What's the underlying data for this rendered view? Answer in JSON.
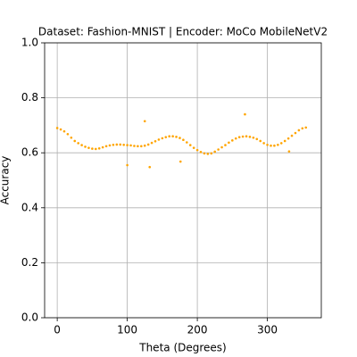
{
  "chart_data": {
    "type": "scatter",
    "title": "Dataset: Fashion-MNIST | Encoder: MoCo MobileNetV2",
    "xlabel": "Theta (Degrees)",
    "ylabel": "Accuracy",
    "color": "#ffa500",
    "grid": true,
    "x": [
      0,
      5,
      10,
      15,
      20,
      25,
      30,
      35,
      40,
      45,
      50,
      55,
      60,
      65,
      70,
      75,
      80,
      85,
      90,
      95,
      100,
      105,
      110,
      115,
      120,
      125,
      130,
      135,
      140,
      145,
      150,
      155,
      160,
      165,
      170,
      175,
      180,
      185,
      190,
      195,
      200,
      205,
      210,
      215,
      220,
      225,
      230,
      235,
      240,
      245,
      250,
      255,
      260,
      265,
      270,
      275,
      280,
      285,
      290,
      295,
      300,
      305,
      310,
      315,
      320,
      325,
      330,
      335,
      340,
      345,
      350,
      355,
      100,
      125,
      132,
      176,
      268,
      331
    ],
    "values": [
      0.69,
      0.685,
      0.678,
      0.668,
      0.655,
      0.643,
      0.635,
      0.628,
      0.622,
      0.618,
      0.615,
      0.614,
      0.616,
      0.62,
      0.624,
      0.627,
      0.629,
      0.63,
      0.63,
      0.629,
      0.628,
      0.627,
      0.625,
      0.624,
      0.624,
      0.626,
      0.63,
      0.636,
      0.642,
      0.648,
      0.653,
      0.657,
      0.66,
      0.66,
      0.658,
      0.654,
      0.647,
      0.638,
      0.628,
      0.618,
      0.61,
      0.603,
      0.598,
      0.596,
      0.598,
      0.604,
      0.612,
      0.62,
      0.628,
      0.637,
      0.645,
      0.652,
      0.657,
      0.659,
      0.66,
      0.658,
      0.655,
      0.65,
      0.643,
      0.635,
      0.629,
      0.626,
      0.626,
      0.629,
      0.635,
      0.643,
      0.652,
      0.662,
      0.672,
      0.682,
      0.689,
      0.692,
      0.555,
      0.715,
      0.548,
      0.568,
      0.74,
      0.605
    ],
    "xlim": [
      -18,
      377
    ],
    "xticks": [
      0,
      100,
      200,
      300
    ],
    "ylim": [
      0,
      1
    ],
    "yticks": [
      {
        "value": 0,
        "label": "0.0"
      },
      {
        "value": 0.2,
        "label": "0.2"
      },
      {
        "value": 0.4,
        "label": "0.4"
      },
      {
        "value": 0.6,
        "label": "0.6"
      },
      {
        "value": 0.8,
        "label": "0.8"
      },
      {
        "value": 1,
        "label": "1.0"
      }
    ]
  }
}
